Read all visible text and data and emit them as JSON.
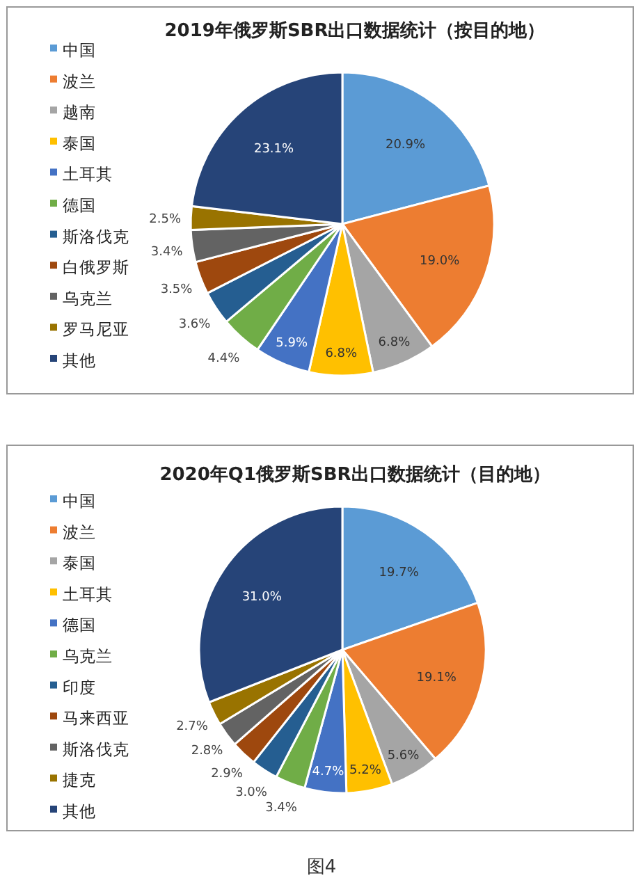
{
  "chart_data": [
    {
      "type": "pie",
      "title": "2019年俄罗斯SBR出口数据统计（按目的地）",
      "legend": "left",
      "value_labels": [
        "20.9%",
        "19.0%",
        "6.8%",
        "6.8%",
        "5.9%",
        "4.4%",
        "3.6%",
        "3.5%",
        "3.4%",
        "2.5%",
        "23.1%"
      ],
      "categories": [
        "中国",
        "波兰",
        "越南",
        "泰国",
        "土耳其",
        "德国",
        "斯洛伐克",
        "白俄罗斯",
        "乌克兰",
        "罗马尼亚",
        "其他"
      ],
      "values": [
        20.9,
        19.0,
        6.8,
        6.8,
        5.9,
        4.4,
        3.6,
        3.5,
        3.4,
        2.5,
        23.1
      ],
      "colors": [
        "#5b9bd5",
        "#ed7d31",
        "#a5a5a5",
        "#ffc000",
        "#4472c4",
        "#70ad47",
        "#255e91",
        "#9e480e",
        "#636363",
        "#997300",
        "#264478"
      ]
    },
    {
      "type": "pie",
      "title": "2020年Q1俄罗斯SBR出口数据统计（目的地）",
      "legend": "left",
      "value_labels": [
        "19.7%",
        "19.1%",
        "5.6%",
        "5.2%",
        "4.7%",
        "3.4%",
        "3.0%",
        "2.9%",
        "2.8%",
        "2.7%",
        "31.0%"
      ],
      "categories": [
        "中国",
        "波兰",
        "泰国",
        "土耳其",
        "德国",
        "乌克兰",
        "印度",
        "马来西亚",
        "斯洛伐克",
        "捷克",
        "其他"
      ],
      "values": [
        19.7,
        19.1,
        5.6,
        5.2,
        4.7,
        3.4,
        3.0,
        2.9,
        2.8,
        2.7,
        31.0
      ],
      "colors": [
        "#5b9bd5",
        "#ed7d31",
        "#a5a5a5",
        "#ffc000",
        "#4472c4",
        "#70ad47",
        "#255e91",
        "#9e480e",
        "#636363",
        "#997300",
        "#264478"
      ],
      "annotations": [
        "图4"
      ]
    }
  ]
}
